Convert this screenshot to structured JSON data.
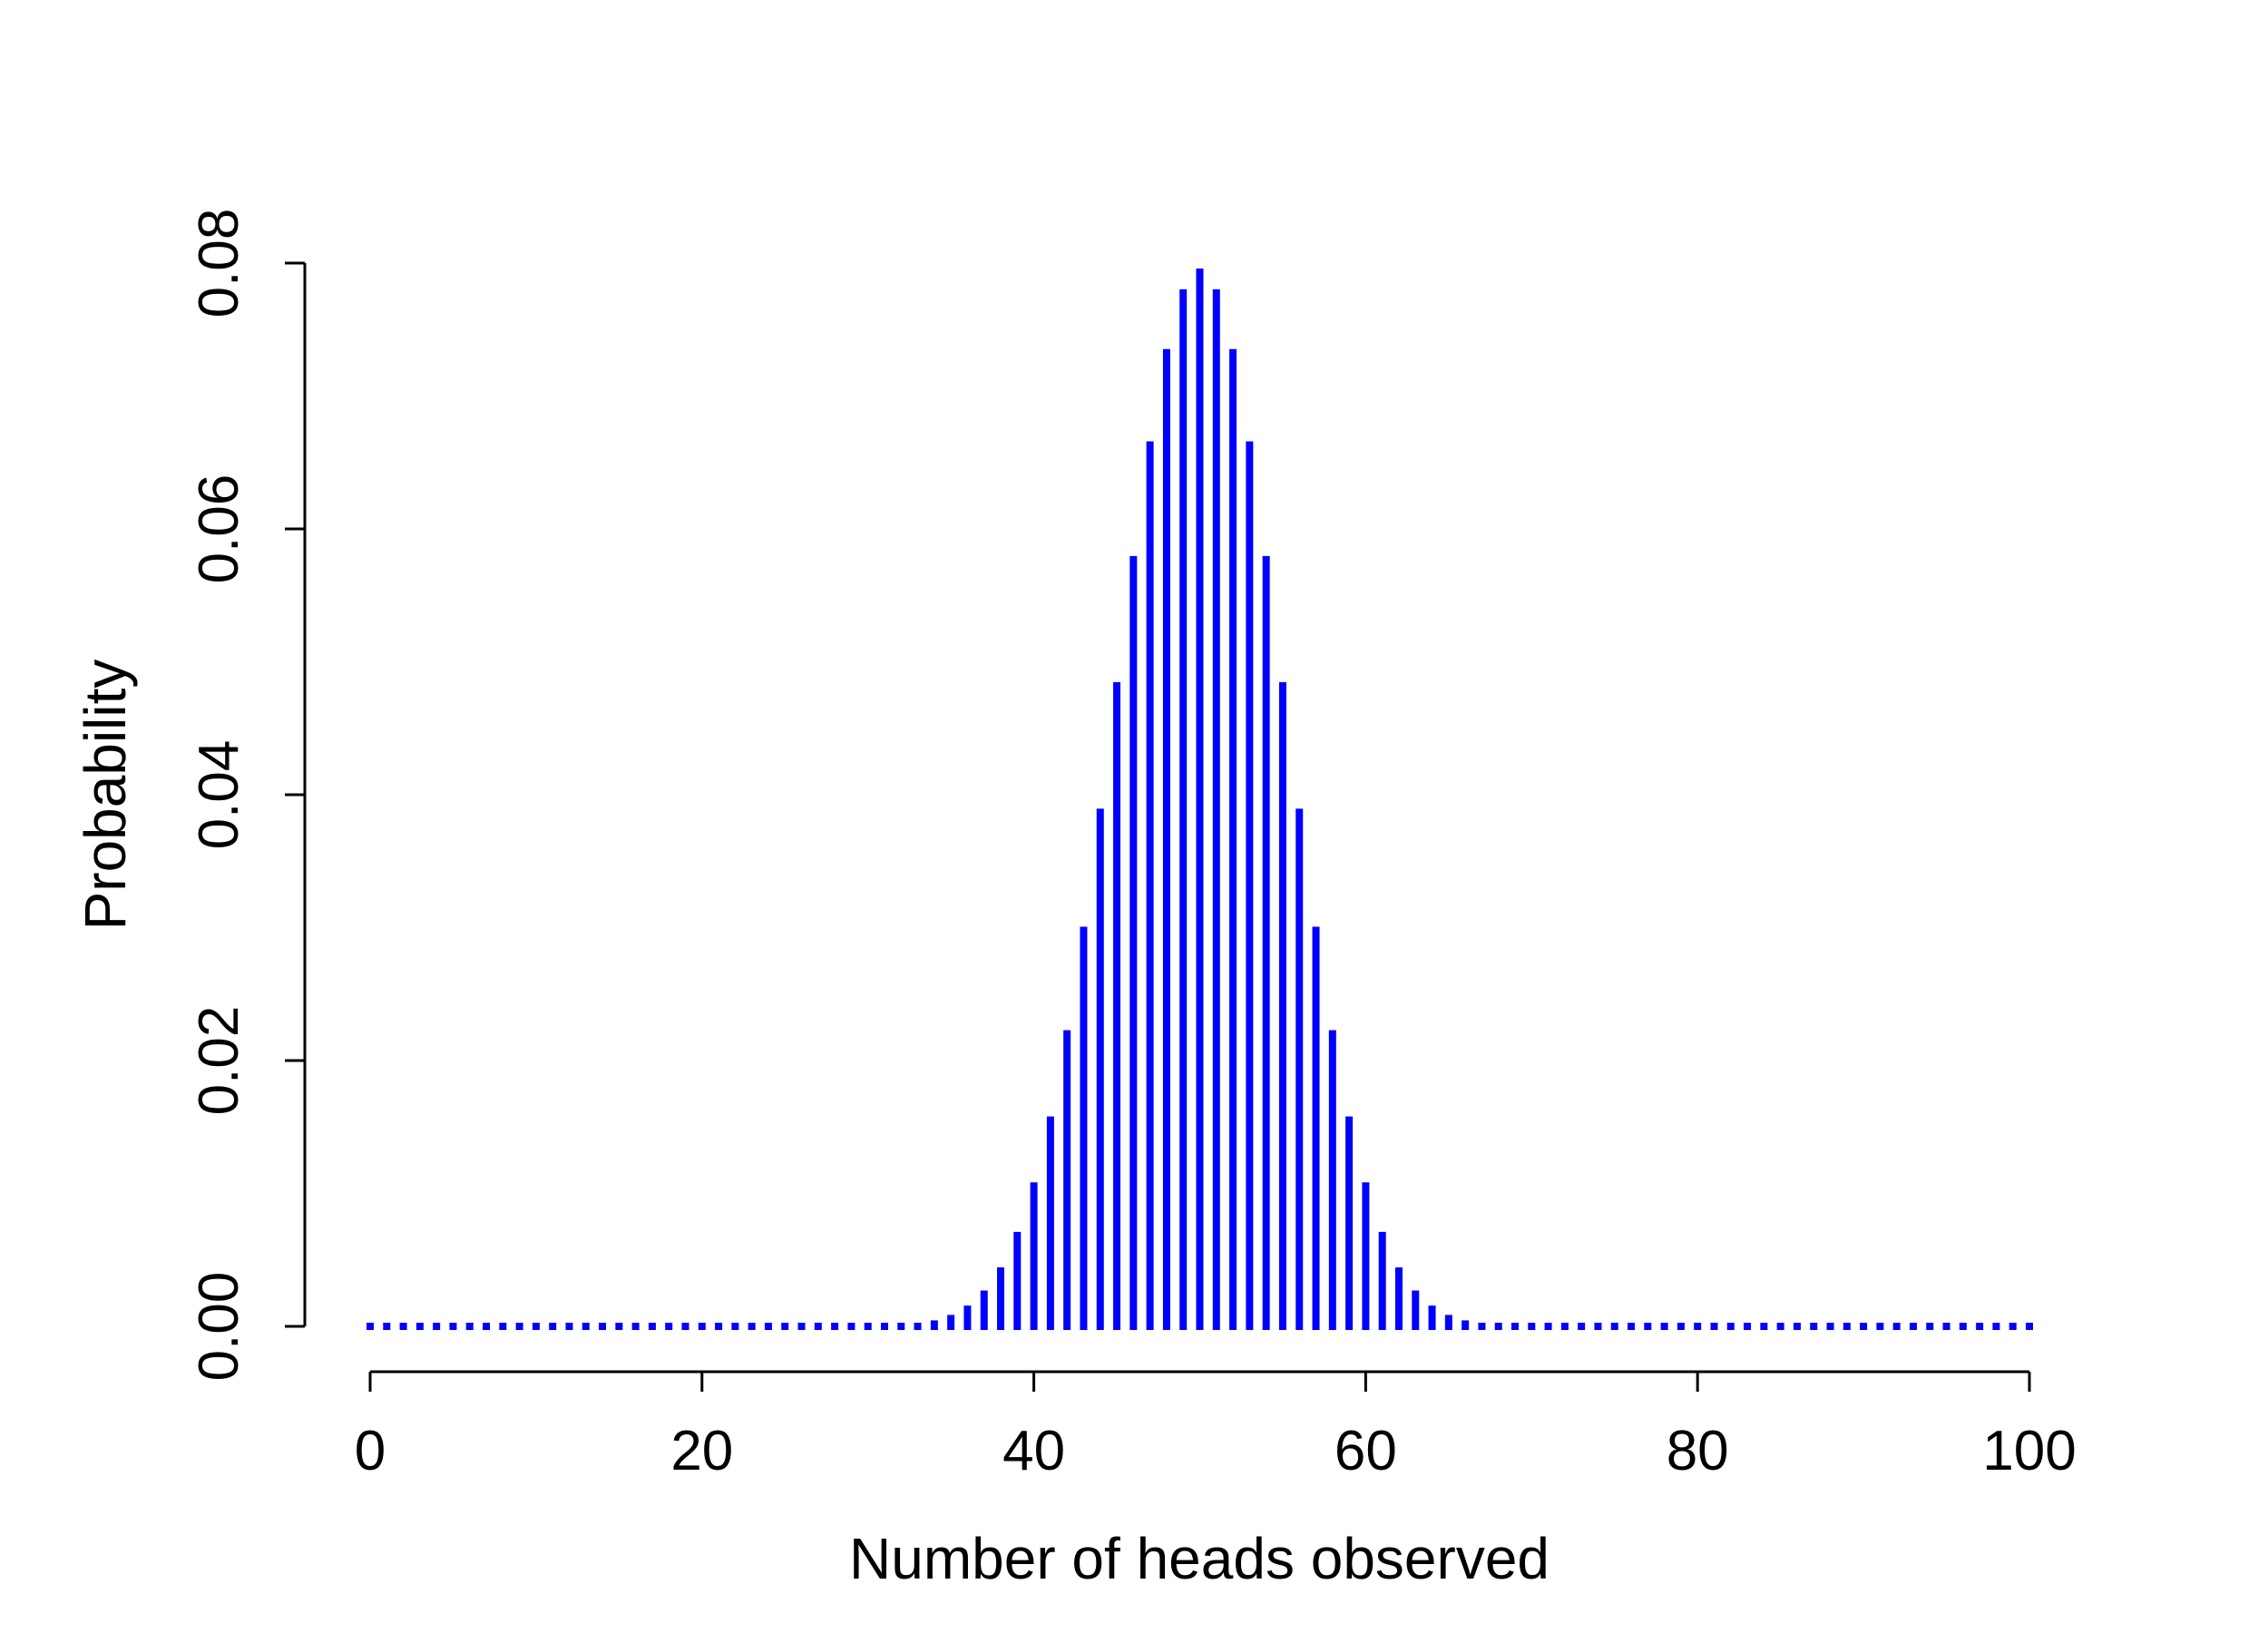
{
  "chart_data": {
    "type": "bar",
    "style": "vertical spikes (histogram-type lines)",
    "xlabel": "Number of heads observed",
    "ylabel": "Probability",
    "xlim": [
      0,
      100
    ],
    "ylim": [
      0,
      0.08
    ],
    "x_ticks": [
      "0",
      "20",
      "40",
      "60",
      "80",
      "100"
    ],
    "y_ticks": [
      "0.00",
      "0.02",
      "0.04",
      "0.06",
      "0.08"
    ],
    "color": "#0000ff",
    "grid": false,
    "legend": "none",
    "x": [
      0,
      1,
      2,
      3,
      4,
      5,
      6,
      7,
      8,
      9,
      10,
      11,
      12,
      13,
      14,
      15,
      16,
      17,
      18,
      19,
      20,
      21,
      22,
      23,
      24,
      25,
      26,
      27,
      28,
      29,
      30,
      31,
      32,
      33,
      34,
      35,
      36,
      37,
      38,
      39,
      40,
      41,
      42,
      43,
      44,
      45,
      46,
      47,
      48,
      49,
      50,
      51,
      52,
      53,
      54,
      55,
      56,
      57,
      58,
      59,
      60,
      61,
      62,
      63,
      64,
      65,
      66,
      67,
      68,
      69,
      70,
      71,
      72,
      73,
      74,
      75,
      76,
      77,
      78,
      79,
      80,
      81,
      82,
      83,
      84,
      85,
      86,
      87,
      88,
      89,
      90,
      91,
      92,
      93,
      94,
      95,
      96,
      97,
      98,
      99,
      100
    ],
    "values": [
      0,
      0,
      0,
      0,
      0,
      0,
      0,
      0,
      0,
      0,
      0,
      0,
      0,
      0,
      0,
      0,
      0,
      0,
      0,
      0,
      0,
      0,
      0,
      0,
      0,
      0,
      0,
      0,
      0,
      2e-05,
      2e-05,
      5e-05,
      0.00011,
      0.00023,
      0.00045,
      0.00086,
      0.00156,
      0.0027,
      0.00444,
      0.00711,
      0.01084,
      0.01579,
      0.02229,
      0.03007,
      0.03895,
      0.04847,
      0.05796,
      0.06659,
      0.07353,
      0.07803,
      0.07959,
      0.07803,
      0.07353,
      0.06659,
      0.05796,
      0.04847,
      0.03895,
      0.03007,
      0.02229,
      0.01579,
      0.01084,
      0.00711,
      0.00444,
      0.0027,
      0.00156,
      0.00086,
      0.00045,
      0.00023,
      0.00011,
      5e-05,
      2e-05,
      2e-05,
      0,
      0,
      0,
      0,
      0,
      0,
      0,
      0,
      0,
      0,
      0,
      0,
      0,
      0,
      0,
      0,
      0,
      0,
      0,
      0,
      0,
      0,
      0,
      0,
      0,
      0,
      0,
      0,
      0
    ]
  }
}
